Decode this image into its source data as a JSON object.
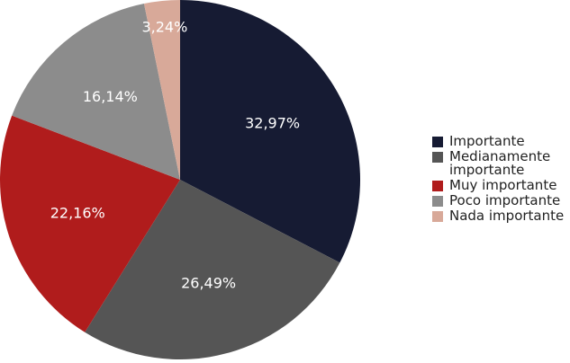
{
  "chart_data": {
    "type": "pie",
    "categories": [
      "Importante",
      "Medianamente importante",
      "Muy importante",
      "Poco importante",
      "Nada importante"
    ],
    "values": [
      32.97,
      26.49,
      22.16,
      16.14,
      3.24
    ],
    "value_labels": [
      "32,97%",
      "26,49%",
      "22,16%",
      "16,14%",
      "3,24%"
    ],
    "colors": [
      "#161b33",
      "#555555",
      "#b01c1c",
      "#8c8c8c",
      "#d8a999"
    ],
    "legend": "right"
  }
}
